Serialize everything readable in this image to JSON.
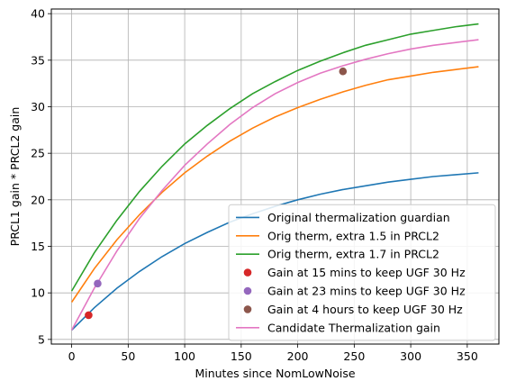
{
  "chart_data": {
    "type": "line",
    "title": "",
    "xlabel": "Minutes since NomLowNoise",
    "ylabel": "PRCL1 gain * PRCL2 gain",
    "xlim": [
      -18,
      378
    ],
    "ylim": [
      4.5,
      40.5
    ],
    "xticks": [
      0,
      50,
      100,
      150,
      200,
      250,
      300,
      350
    ],
    "yticks": [
      5,
      10,
      15,
      20,
      25,
      30,
      35,
      40
    ],
    "grid": true,
    "legend_position": "lower-right",
    "series": [
      {
        "name": "Original thermalization guardian",
        "color": "#1f77b4",
        "x": [
          0,
          20,
          40,
          60,
          80,
          100,
          120,
          140,
          160,
          180,
          200,
          220,
          240,
          260,
          280,
          300,
          320,
          340,
          360
        ],
        "y": [
          6.0,
          8.4,
          10.5,
          12.3,
          13.9,
          15.3,
          16.5,
          17.6,
          18.5,
          19.3,
          20.0,
          20.6,
          21.1,
          21.5,
          21.9,
          22.2,
          22.5,
          22.7,
          22.9
        ]
      },
      {
        "name": "Orig therm, extra 1.5 in PRCL2",
        "color": "#ff7f0e",
        "x": [
          0,
          20,
          40,
          60,
          80,
          100,
          120,
          140,
          160,
          180,
          200,
          220,
          240,
          260,
          280,
          300,
          320,
          340,
          360
        ],
        "y": [
          9.0,
          12.6,
          15.7,
          18.4,
          20.8,
          22.9,
          24.7,
          26.3,
          27.7,
          28.9,
          29.9,
          30.8,
          31.6,
          32.3,
          32.9,
          33.3,
          33.7,
          34.0,
          34.3
        ]
      },
      {
        "name": "Orig therm, extra 1.7 in PRCL2",
        "color": "#2ca02c",
        "x": [
          0,
          20,
          40,
          60,
          80,
          100,
          120,
          140,
          160,
          180,
          200,
          220,
          240,
          260,
          280,
          300,
          320,
          340,
          360
        ],
        "y": [
          10.2,
          14.3,
          17.8,
          20.9,
          23.6,
          26.0,
          28.0,
          29.8,
          31.4,
          32.7,
          33.9,
          34.9,
          35.8,
          36.6,
          37.2,
          37.8,
          38.2,
          38.6,
          38.9
        ]
      },
      {
        "name": "Gain at 15 mins to keep UGF 30 Hz",
        "color": "#d62728",
        "points": [
          [
            15,
            7.6
          ]
        ]
      },
      {
        "name": "Gain at 23 mins to keep UGF 30 Hz",
        "color": "#9467bd",
        "points": [
          [
            23,
            11.0
          ]
        ]
      },
      {
        "name": "Gain at 4 hours to keep UGF 30 Hz",
        "color": "#8c564b",
        "points": [
          [
            240,
            33.8
          ]
        ]
      },
      {
        "name": "Candidate Thermalization gain",
        "color": "#e377c2",
        "x": [
          0,
          20,
          40,
          60,
          80,
          100,
          120,
          140,
          160,
          180,
          200,
          220,
          240,
          260,
          280,
          300,
          320,
          340,
          360
        ],
        "y": [
          6.0,
          10.5,
          14.5,
          18.0,
          21.0,
          23.7,
          26.0,
          28.1,
          29.9,
          31.4,
          32.6,
          33.6,
          34.4,
          35.1,
          35.7,
          36.2,
          36.6,
          36.9,
          37.2
        ]
      }
    ],
    "legend_order": [
      0,
      1,
      2,
      3,
      4,
      5,
      6
    ]
  }
}
